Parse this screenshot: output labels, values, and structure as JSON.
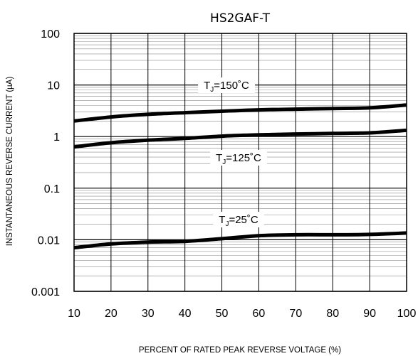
{
  "chart_data": {
    "type": "line",
    "title": "HS2GAF-T",
    "xlabel": "PERCENT OF RATED PEAK REVERSE VOLTAGE (%)",
    "ylabel": "INSTANTANEOUS REVERSE CURRENT (µA)",
    "x_scale": "linear",
    "y_scale": "log",
    "xlim": [
      10,
      100
    ],
    "ylim": [
      0.001,
      100
    ],
    "x_ticks": [
      "10",
      "20",
      "30",
      "40",
      "50",
      "60",
      "70",
      "80",
      "90",
      "100"
    ],
    "y_ticks": [
      "0.001",
      "0.01",
      "0.1",
      "1",
      "10",
      "100"
    ],
    "grid": true,
    "series": [
      {
        "name": "TJ=150°C",
        "label_main": "T",
        "label_sub": "J",
        "label_rest": "=150˚C",
        "color": "#000000",
        "x": [
          10,
          20,
          30,
          40,
          50,
          60,
          70,
          80,
          90,
          100
        ],
        "y": [
          2.0,
          2.4,
          2.7,
          2.9,
          3.1,
          3.3,
          3.4,
          3.5,
          3.6,
          4.1
        ]
      },
      {
        "name": "TJ=125°C",
        "label_main": "T",
        "label_sub": "J",
        "label_rest": "=125˚C",
        "color": "#000000",
        "x": [
          10,
          20,
          30,
          40,
          50,
          60,
          70,
          80,
          90,
          100
        ],
        "y": [
          0.63,
          0.76,
          0.85,
          0.92,
          1.02,
          1.08,
          1.12,
          1.15,
          1.18,
          1.32
        ]
      },
      {
        "name": "TJ=25°C",
        "label_main": "T",
        "label_sub": "J",
        "label_rest": "=25˚C",
        "color": "#000000",
        "x": [
          10,
          20,
          30,
          40,
          50,
          60,
          70,
          80,
          90,
          100
        ],
        "y": [
          0.007,
          0.0083,
          0.009,
          0.0093,
          0.0105,
          0.012,
          0.0125,
          0.0125,
          0.0127,
          0.0135
        ]
      }
    ]
  }
}
